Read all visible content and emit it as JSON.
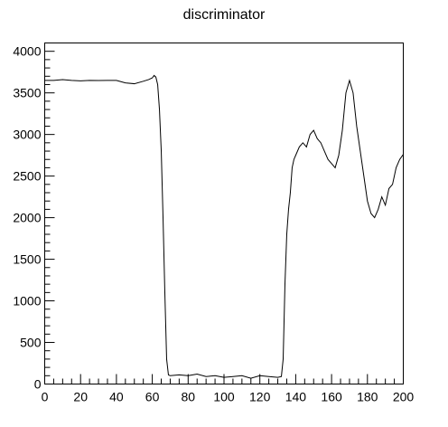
{
  "chart_data": {
    "type": "line",
    "title": "discriminator",
    "xlabel": "",
    "ylabel": "",
    "xlim": [
      0,
      200
    ],
    "ylim": [
      0,
      4100
    ],
    "xticks": [
      0,
      20,
      40,
      60,
      80,
      100,
      120,
      140,
      160,
      180,
      200
    ],
    "yticks": [
      0,
      500,
      1000,
      1500,
      2000,
      2500,
      3000,
      3500,
      4000
    ],
    "grid": false,
    "legend": "none",
    "line_color": "#000000",
    "series": [
      {
        "x": [
          0,
          5,
          10,
          15,
          20,
          25,
          30,
          35,
          40,
          45,
          50,
          55,
          58,
          60,
          61,
          62,
          63,
          64,
          65,
          66,
          67,
          68,
          69,
          70,
          75,
          80,
          85,
          90,
          95,
          100,
          105,
          110,
          115,
          120,
          125,
          130,
          132,
          133,
          134,
          135,
          136,
          137,
          138,
          139,
          140,
          142,
          144,
          146,
          148,
          150,
          152,
          154,
          156,
          158,
          160,
          162,
          164,
          166,
          168,
          170,
          172,
          174,
          176,
          178,
          180,
          182,
          184,
          186,
          188,
          190,
          192,
          194,
          196,
          198,
          200
        ],
        "y": [
          3650,
          3650,
          3660,
          3650,
          3645,
          3650,
          3648,
          3650,
          3650,
          3620,
          3610,
          3640,
          3660,
          3680,
          3710,
          3690,
          3600,
          3300,
          2800,
          2000,
          1100,
          300,
          110,
          100,
          110,
          100,
          120,
          90,
          100,
          80,
          90,
          100,
          70,
          100,
          90,
          80,
          90,
          300,
          1200,
          1800,
          2100,
          2300,
          2600,
          2700,
          2750,
          2850,
          2900,
          2850,
          3000,
          3050,
          2950,
          2900,
          2800,
          2700,
          2650,
          2600,
          2750,
          3050,
          3500,
          3650,
          3500,
          3100,
          2800,
          2500,
          2200,
          2050,
          2000,
          2100,
          2250,
          2150,
          2350,
          2400,
          2600,
          2700,
          2760
        ]
      }
    ]
  }
}
